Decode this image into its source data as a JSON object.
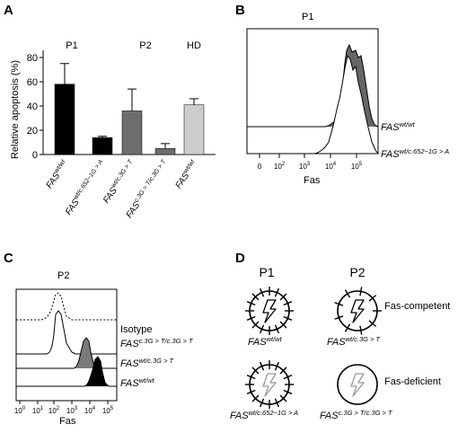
{
  "panels": {
    "a": {
      "label": "A"
    },
    "b": {
      "label": "B",
      "title": "P1"
    },
    "c": {
      "label": "C",
      "title": "P2"
    },
    "d": {
      "label": "D"
    }
  },
  "chart_data": [
    {
      "id": "A",
      "type": "bar",
      "ylabel": "Relative apoptosis (%)",
      "ylim": [
        0,
        85
      ],
      "yticks": [
        "0",
        "20",
        "40",
        "60",
        "80"
      ],
      "groups": [
        "P1",
        "P2",
        "HD"
      ],
      "bars": [
        {
          "base": "FAS",
          "sup": "wt/wt",
          "value": 58,
          "error": 17,
          "color": "#000000"
        },
        {
          "base": "FAS",
          "sup": "wt/c.652−1G > A",
          "value": 14,
          "error": 1,
          "color": "#000000"
        },
        {
          "base": "FAS",
          "sup": "wt/c.3G > T",
          "value": 36,
          "error": 18,
          "color": "#6e6e6e"
        },
        {
          "base": "FAS",
          "sup": "c.3G > T/c.3G > T",
          "value": 5,
          "error": 4,
          "color": "#6e6e6e"
        },
        {
          "base": "FAS",
          "sup": "wt/wt",
          "value": 41,
          "error": 5,
          "color": "#cccccc"
        }
      ]
    },
    {
      "id": "B",
      "type": "area",
      "title": "P1",
      "xlabel": "Fas",
      "xscale": "log",
      "xticks": [
        "0",
        "10",
        "10",
        "10",
        "10"
      ],
      "xtick_exponents": [
        "",
        "2",
        "3",
        "4",
        "5"
      ],
      "series": [
        {
          "base": "FAS",
          "sup": "wt/wt",
          "fill": "#666666"
        },
        {
          "base": "FAS",
          "sup": "wt/c.652−1G > A",
          "fill": "#ffffff"
        }
      ]
    },
    {
      "id": "C",
      "type": "area",
      "title": "P2",
      "xlabel": "Fas",
      "xscale": "log",
      "xticks": [
        "10",
        "10",
        "10",
        "10",
        "10",
        "10"
      ],
      "xtick_exponents": [
        "0",
        "1",
        "2",
        "3",
        "4",
        "5"
      ],
      "series": [
        {
          "name": "Isotype",
          "fill": "none",
          "dashed": true
        },
        {
          "base": "FAS",
          "sup": "c.3G > T/c.3G > T",
          "fill": "#ffffff"
        },
        {
          "base": "FAS",
          "sup": "wt/c.3G > T",
          "fill": "#7a7a7a"
        },
        {
          "base": "FAS",
          "sup": "wt/wt",
          "fill": "#000000"
        }
      ]
    }
  ],
  "diagram_d": {
    "col_labels": [
      "P1",
      "P2"
    ],
    "cells": [
      {
        "base": "FAS",
        "sup": "wt/wt",
        "receptors": 16,
        "bolt": "#000000",
        "note": ""
      },
      {
        "base": "FAS",
        "sup": "wt/c.3G > T",
        "receptors": 9,
        "bolt": "#000000",
        "note": "Fas-competent"
      },
      {
        "base": "FAS",
        "sup": "wt/c.652−1G > A",
        "receptors": 16,
        "bolt": "#999999",
        "note": ""
      },
      {
        "base": "FAS",
        "sup": "c.3G > T/c.3G > T",
        "receptors": 0,
        "bolt": "#999999",
        "note": "Fas-deficient"
      }
    ]
  }
}
